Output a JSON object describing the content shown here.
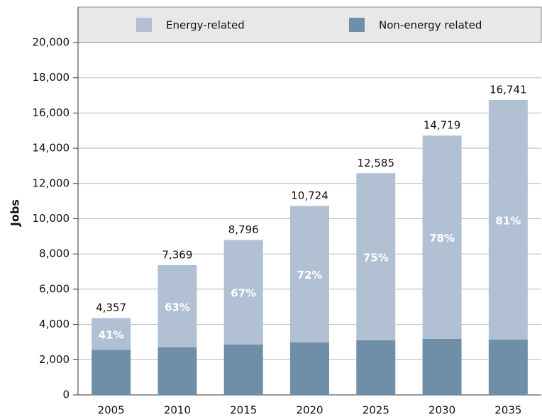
{
  "chart_data": {
    "type": "stacked-bar",
    "y_label": "Jobs",
    "categories": [
      "2005",
      "2010",
      "2015",
      "2020",
      "2025",
      "2030",
      "2035"
    ],
    "series": [
      {
        "name": "Non-energy related",
        "color": "#6f8fa8",
        "values": [
          2560,
          2700,
          2860,
          2980,
          3100,
          3180,
          3150
        ]
      },
      {
        "name": "Energy-related",
        "color": "#b1c1d3",
        "values": [
          1797,
          4669,
          5936,
          7744,
          9485,
          11539,
          13591
        ],
        "share_labels": [
          "41%",
          "63%",
          "67%",
          "72%",
          "75%",
          "78%",
          "81%"
        ]
      }
    ],
    "total_labels": [
      "4,357",
      "7,369",
      "8,796",
      "10,724",
      "12,585",
      "14,719",
      "16,741"
    ],
    "ylim": [
      0,
      20000
    ],
    "yticks": [
      0,
      {
        "value": 2000,
        "label": "2,000"
      },
      {
        "value": 4000,
        "label": "4,000"
      },
      {
        "value": 6000,
        "label": "6,000"
      },
      {
        "value": 8000,
        "label": "8,000"
      },
      {
        "value": 10000,
        "label": "10,000"
      },
      {
        "value": 12000,
        "label": "12,000"
      },
      {
        "value": 14000,
        "label": "14,000"
      },
      {
        "value": 16000,
        "label": "16,000"
      },
      {
        "value": 18000,
        "label": "18,000"
      },
      {
        "value": 20000,
        "label": "20,000"
      }
    ],
    "grid": true
  }
}
